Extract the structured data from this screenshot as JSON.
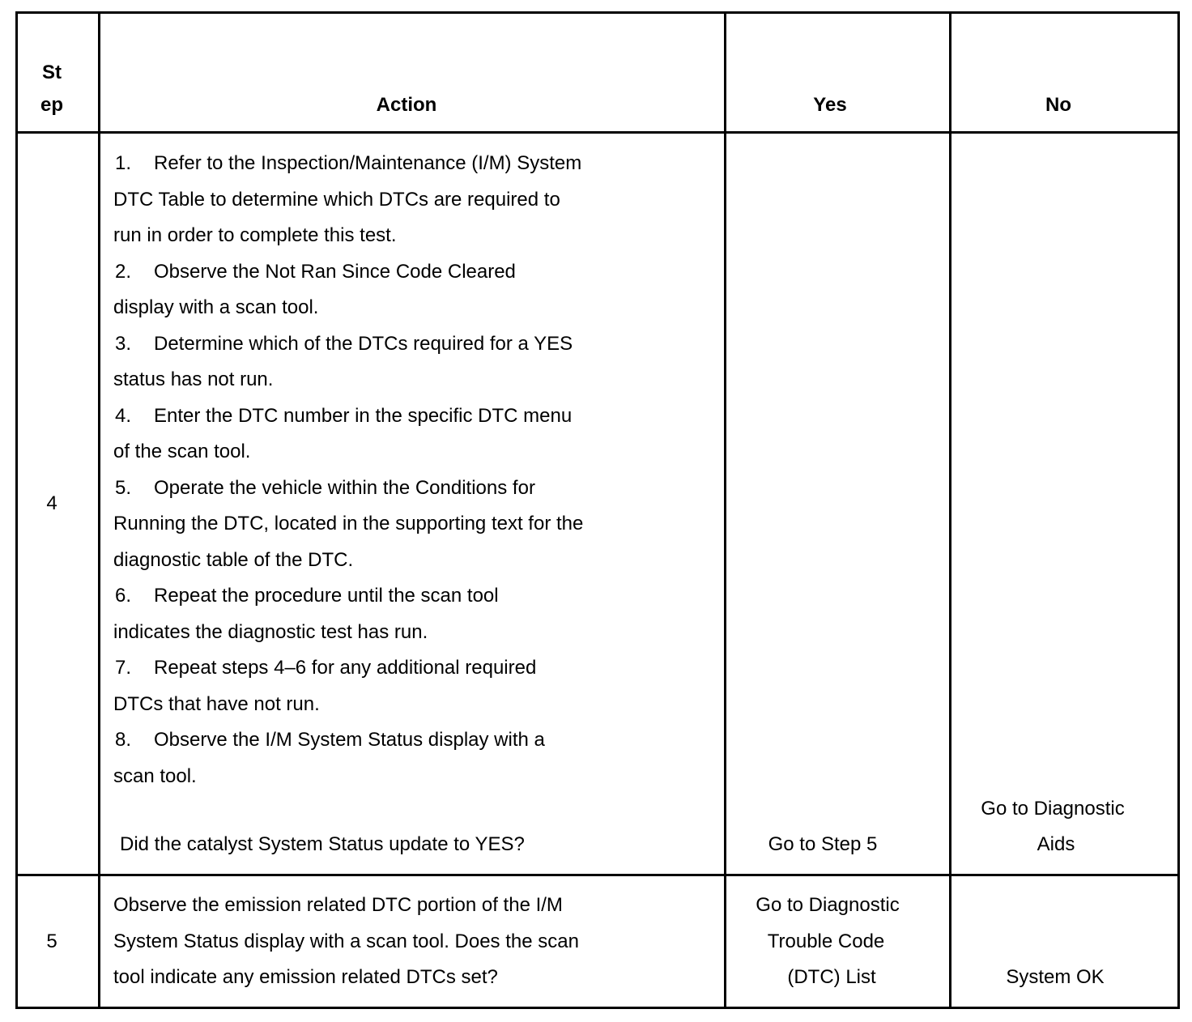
{
  "header": {
    "step": [
      "St",
      "ep"
    ],
    "action": "Action",
    "yes": "Yes",
    "no": "No"
  },
  "rows": [
    {
      "step": "4",
      "action_lines": [
        {
          "num": "1.",
          "text": "Refer to the Inspection/Maintenance (I/M) System"
        },
        {
          "num": "",
          "text": "DTC Table to determine which DTCs are required to"
        },
        {
          "num": "",
          "text": "run in order to complete this test."
        },
        {
          "num": "2.",
          "text": "Observe the Not Ran Since Code Cleared"
        },
        {
          "num": "",
          "text": "display with a scan tool."
        },
        {
          "num": "3.",
          "text": "Determine which of the DTCs required for a YES"
        },
        {
          "num": "",
          "text": "status has not run."
        },
        {
          "num": "4.",
          "text": "Enter the DTC number in the specific DTC menu"
        },
        {
          "num": "",
          "text": "of the scan tool."
        },
        {
          "num": "5.",
          "text": "Operate the vehicle within the Conditions for"
        },
        {
          "num": "",
          "text": "Running the DTC, located in the supporting text for the"
        },
        {
          "num": "",
          "text": "diagnostic table of the DTC."
        },
        {
          "num": "6.",
          "text": "Repeat the procedure until the scan tool"
        },
        {
          "num": "",
          "text": "indicates the diagnostic test has run."
        },
        {
          "num": "7.",
          "text": "Repeat steps 4–6 for any additional required"
        },
        {
          "num": "",
          "text": "DTCs that have not run."
        },
        {
          "num": "8.",
          "text": "Observe the I/M System Status display with a"
        },
        {
          "num": "",
          "text": "scan tool."
        }
      ],
      "question": "Did the catalyst System Status update to YES?",
      "yes": [
        "Go to Step 5"
      ],
      "no": [
        "Go to Diagnostic",
        "Aids"
      ]
    },
    {
      "step": "5",
      "action_lines": [
        {
          "num": "",
          "text": "Observe the emission related DTC portion of the I/M"
        },
        {
          "num": "",
          "text": "System Status display with a scan tool. Does the scan"
        },
        {
          "num": "",
          "text": "tool indicate any emission related DTCs set?"
        }
      ],
      "yes": [
        "Go to Diagnostic",
        "Trouble Code",
        "(DTC) List"
      ],
      "no": [
        "System OK"
      ]
    }
  ]
}
